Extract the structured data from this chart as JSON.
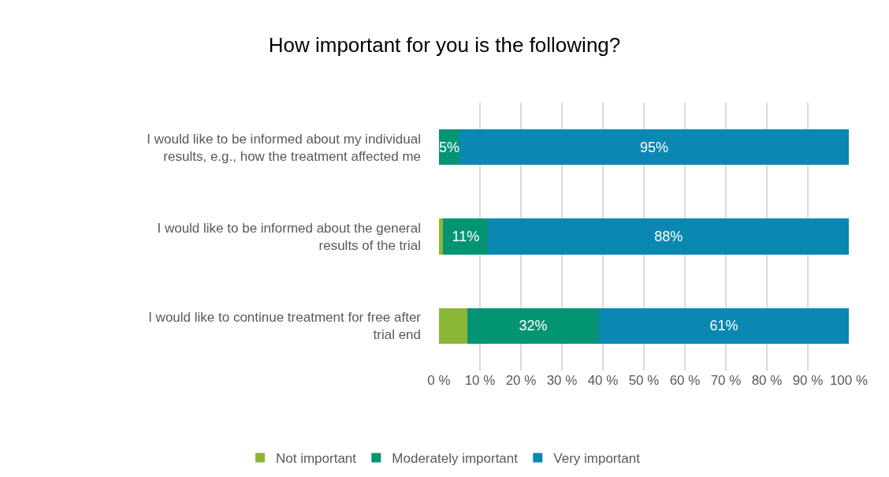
{
  "chart_data": {
    "type": "bar",
    "orientation": "horizontal",
    "stacked": true,
    "title": "How important for you is the following?",
    "categories": [
      "I would like to be informed about my individual results, e.g., how the treatment affected me",
      "I would like to be informed about the general results of the trial",
      "I would like to continue treatment for free after trial end"
    ],
    "series": [
      {
        "name": "Not important",
        "color": "#8cb736",
        "values": [
          0,
          1,
          7
        ],
        "value_labels": [
          null,
          null,
          null
        ]
      },
      {
        "name": "Moderately important",
        "color": "#039573",
        "values": [
          5,
          11,
          32
        ],
        "value_labels": [
          "5%",
          "11%",
          "32%"
        ]
      },
      {
        "name": "Very important",
        "color": "#0b88b2",
        "values": [
          95,
          88,
          61
        ],
        "value_labels": [
          "95%",
          "88%",
          "61%"
        ]
      }
    ],
    "xlim": [
      0,
      100
    ],
    "xticks": [
      {
        "value": 0,
        "label": "0 %"
      },
      {
        "value": 10,
        "label": "10 %"
      },
      {
        "value": 20,
        "label": "20 %"
      },
      {
        "value": 30,
        "label": "30 %"
      },
      {
        "value": 40,
        "label": "40 %"
      },
      {
        "value": 50,
        "label": "50 %"
      },
      {
        "value": 60,
        "label": "60 %"
      },
      {
        "value": 70,
        "label": "70 %"
      },
      {
        "value": 80,
        "label": "80 %"
      },
      {
        "value": 90,
        "label": "90 %"
      },
      {
        "value": 100,
        "label": "100 %"
      }
    ],
    "grid": "x",
    "legend": "bottom"
  }
}
